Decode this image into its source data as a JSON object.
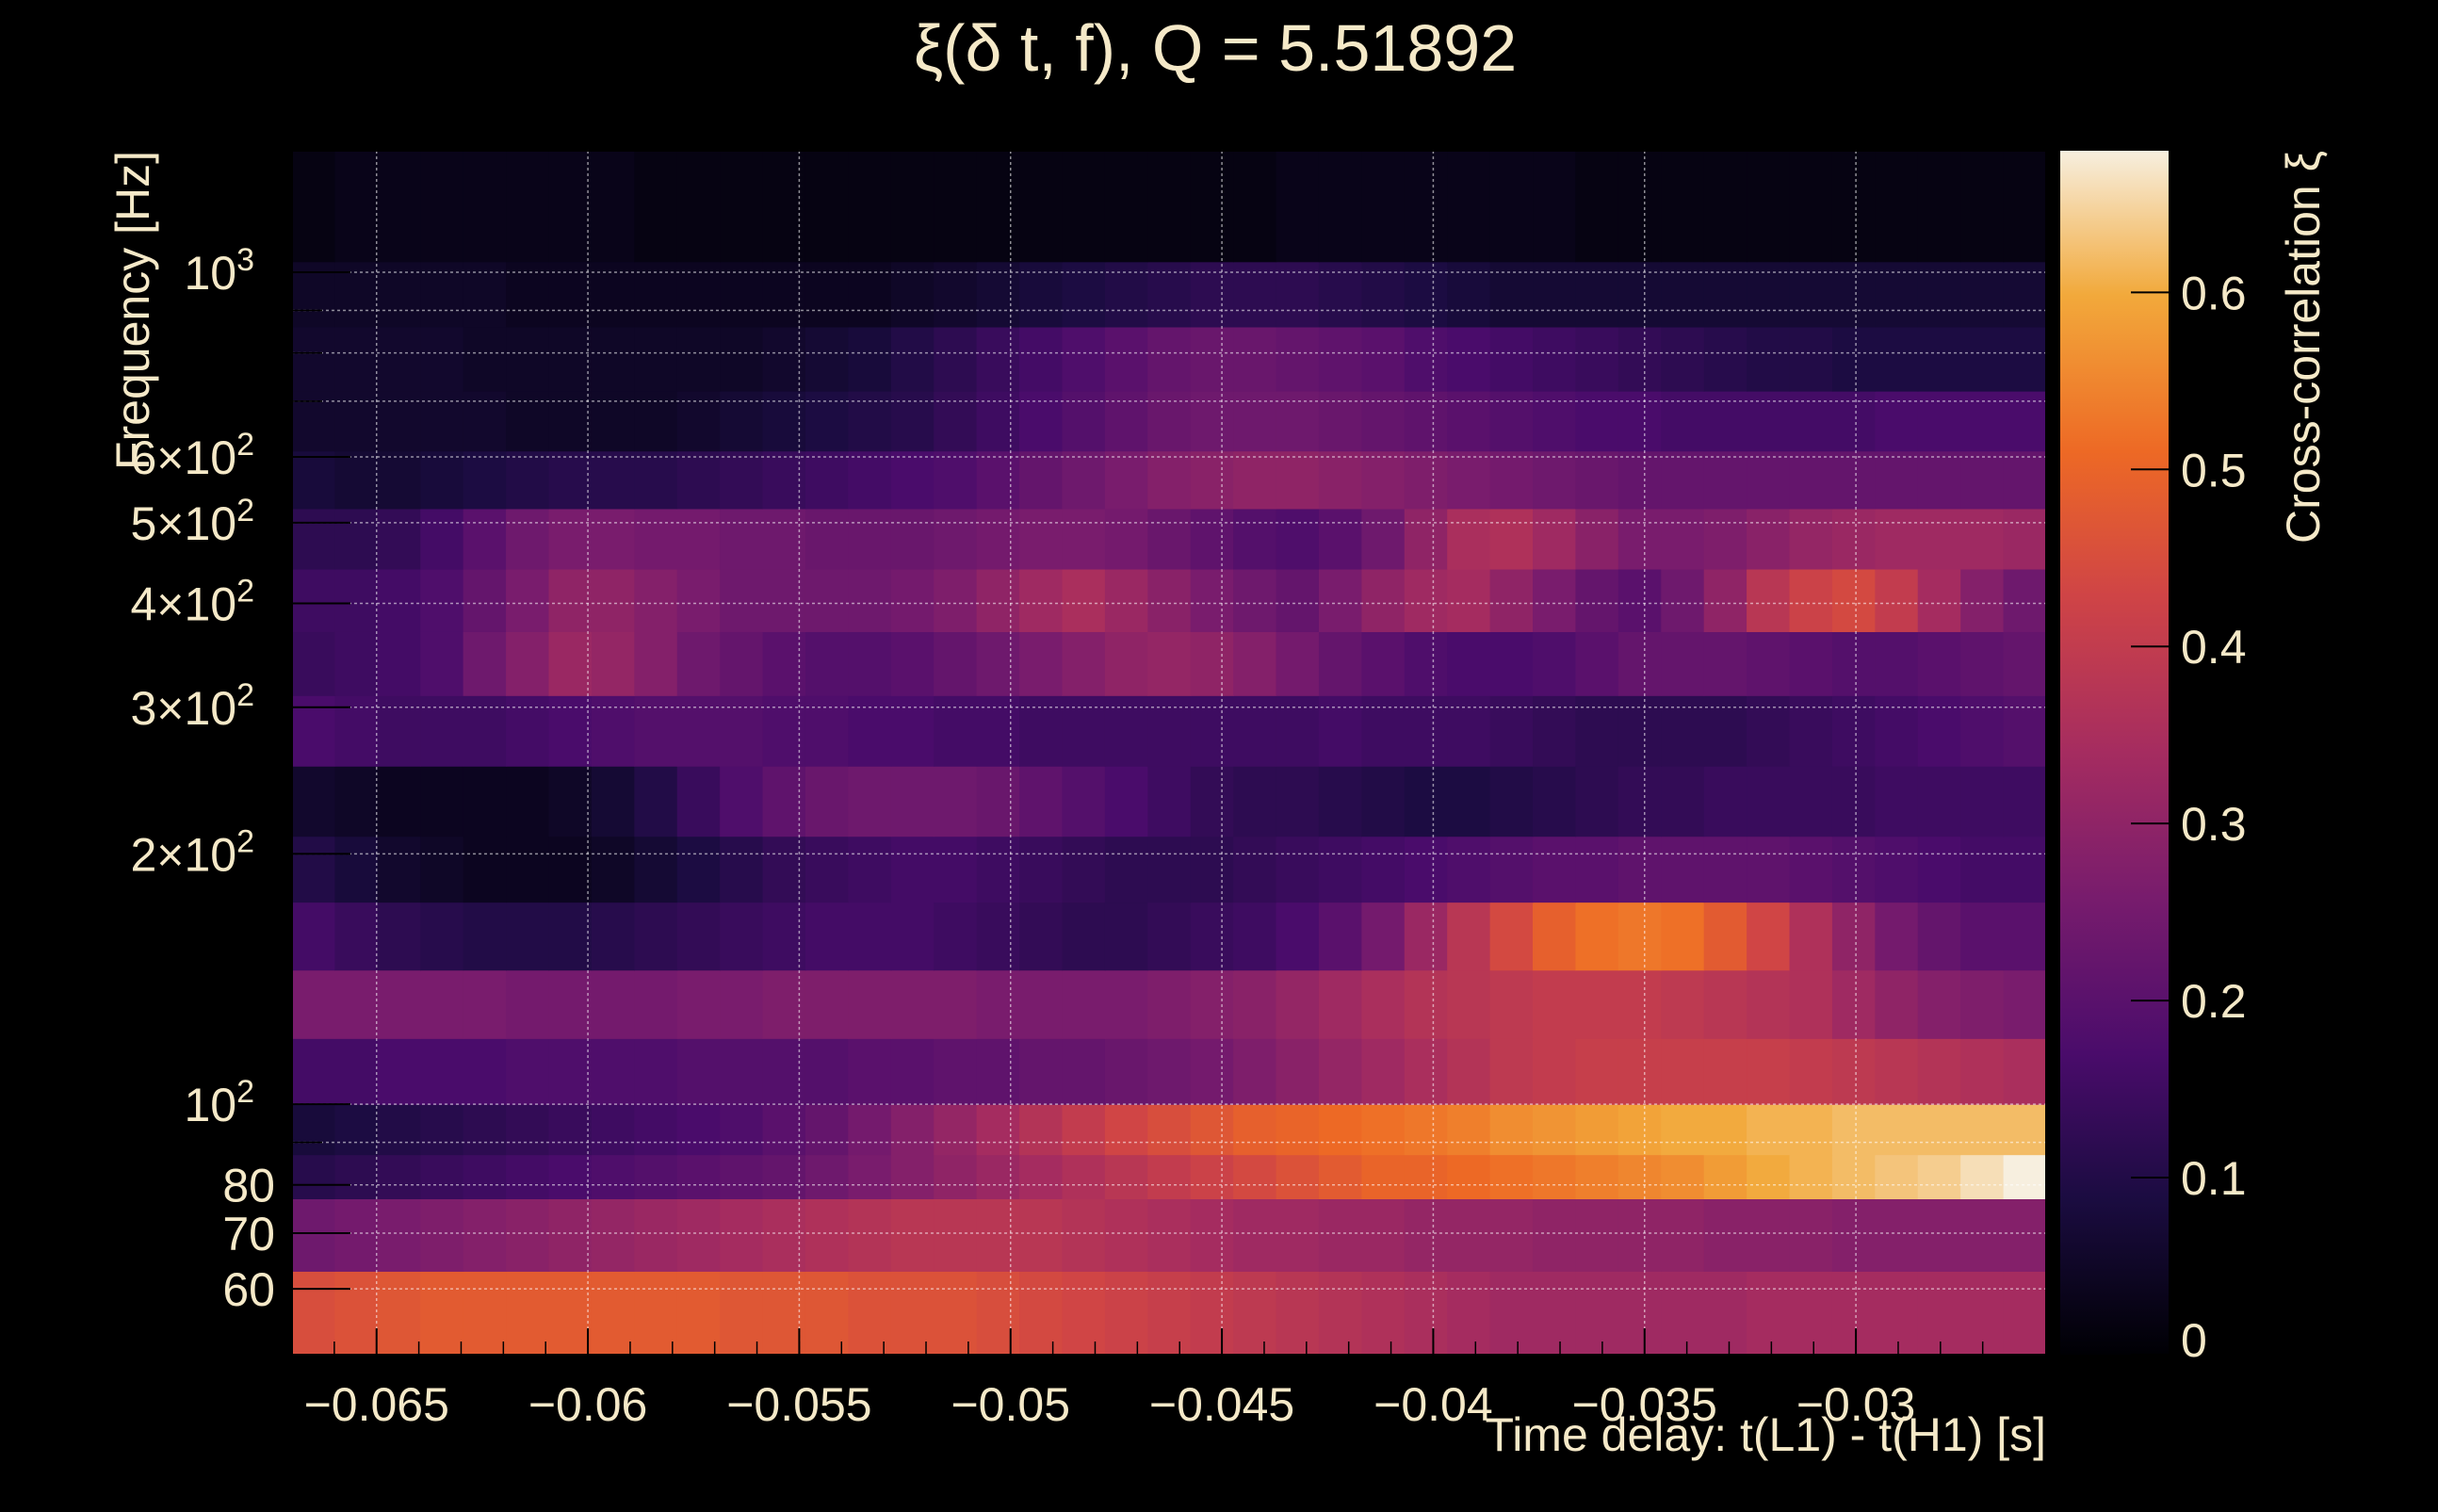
{
  "chart_data": {
    "type": "heatmap",
    "title": "ξ(δ t, f), Q = 5.51892",
    "xlabel": "Time delay: t(L1) - t(H1) [s]",
    "ylabel": "Frequency [Hz]",
    "zlabel": "Cross-correlation ξ",
    "x_range": [
      -0.067,
      -0.0255
    ],
    "y_range": [
      50,
      1400
    ],
    "y_scale": "log",
    "z_range": [
      0,
      0.68
    ],
    "grid": true,
    "colormap": "inferno",
    "x_ticks": [
      {
        "value": -0.065,
        "label": "−0.065"
      },
      {
        "value": -0.06,
        "label": "−0.06"
      },
      {
        "value": -0.055,
        "label": "−0.055"
      },
      {
        "value": -0.05,
        "label": "−0.05"
      },
      {
        "value": -0.045,
        "label": "−0.045"
      },
      {
        "value": -0.04,
        "label": "−0.04"
      },
      {
        "value": -0.035,
        "label": "−0.035"
      },
      {
        "value": -0.03,
        "label": "−0.03"
      }
    ],
    "y_ticks": [
      {
        "value": 60,
        "label": "60"
      },
      {
        "value": 70,
        "label": "70"
      },
      {
        "value": 80,
        "label": "80"
      },
      {
        "value": 100,
        "label": "10",
        "sup": "2"
      },
      {
        "value": 200,
        "label": "2×10",
        "sup": "2"
      },
      {
        "value": 300,
        "label": "3×10",
        "sup": "2"
      },
      {
        "value": 400,
        "label": "4×10",
        "sup": "2"
      },
      {
        "value": 500,
        "label": "5×10",
        "sup": "2"
      },
      {
        "value": 600,
        "label": "6×10",
        "sup": "2"
      },
      {
        "value": 1000,
        "label": "10",
        "sup": "3"
      }
    ],
    "y_minor_ticks": [
      90,
      700,
      800,
      900
    ],
    "z_ticks": [
      {
        "value": 0,
        "label": "0"
      },
      {
        "value": 0.1,
        "label": "0.1"
      },
      {
        "value": 0.2,
        "label": "0.2"
      },
      {
        "value": 0.3,
        "label": "0.3"
      },
      {
        "value": 0.4,
        "label": "0.4"
      },
      {
        "value": 0.5,
        "label": "0.5"
      },
      {
        "value": 0.6,
        "label": "0.6"
      }
    ],
    "rows": [
      {
        "f_low": 50,
        "f_high": 63,
        "values": [
          0.45,
          0.46,
          0.47,
          0.48,
          0.48,
          0.48,
          0.48,
          0.48,
          0.48,
          0.48,
          0.47,
          0.47,
          0.47,
          0.46,
          0.46,
          0.46,
          0.45,
          0.44,
          0.43,
          0.42,
          0.41,
          0.4,
          0.39,
          0.38,
          0.37,
          0.36,
          0.35,
          0.34,
          0.33,
          0.33,
          0.33,
          0.33,
          0.33,
          0.33,
          0.34,
          0.34,
          0.34,
          0.34,
          0.34,
          0.34,
          0.34
        ]
      },
      {
        "f_low": 63,
        "f_high": 77,
        "values": [
          0.24,
          0.25,
          0.26,
          0.27,
          0.28,
          0.29,
          0.3,
          0.31,
          0.32,
          0.33,
          0.34,
          0.35,
          0.36,
          0.37,
          0.38,
          0.38,
          0.38,
          0.38,
          0.37,
          0.36,
          0.35,
          0.34,
          0.33,
          0.33,
          0.32,
          0.32,
          0.31,
          0.31,
          0.31,
          0.3,
          0.3,
          0.3,
          0.3,
          0.29,
          0.29,
          0.29,
          0.28,
          0.28,
          0.28,
          0.28,
          0.28
        ]
      },
      {
        "f_low": 77,
        "f_high": 87,
        "values": [
          0.11,
          0.12,
          0.13,
          0.14,
          0.15,
          0.16,
          0.17,
          0.18,
          0.19,
          0.2,
          0.21,
          0.22,
          0.24,
          0.26,
          0.28,
          0.3,
          0.32,
          0.34,
          0.36,
          0.38,
          0.4,
          0.42,
          0.44,
          0.46,
          0.48,
          0.5,
          0.5,
          0.51,
          0.52,
          0.53,
          0.54,
          0.55,
          0.56,
          0.58,
          0.6,
          0.61,
          0.62,
          0.63,
          0.64,
          0.66,
          0.68
        ]
      },
      {
        "f_low": 87,
        "f_high": 100,
        "values": [
          0.08,
          0.09,
          0.1,
          0.11,
          0.12,
          0.13,
          0.14,
          0.15,
          0.16,
          0.17,
          0.18,
          0.2,
          0.22,
          0.25,
          0.28,
          0.31,
          0.34,
          0.37,
          0.4,
          0.43,
          0.45,
          0.47,
          0.49,
          0.5,
          0.51,
          0.52,
          0.53,
          0.54,
          0.56,
          0.57,
          0.58,
          0.59,
          0.6,
          0.6,
          0.61,
          0.61,
          0.62,
          0.62,
          0.62,
          0.62,
          0.62
        ]
      },
      {
        "f_low": 100,
        "f_high": 120,
        "values": [
          0.16,
          0.16,
          0.17,
          0.17,
          0.17,
          0.18,
          0.18,
          0.18,
          0.18,
          0.19,
          0.19,
          0.19,
          0.19,
          0.2,
          0.2,
          0.21,
          0.21,
          0.22,
          0.22,
          0.23,
          0.24,
          0.25,
          0.27,
          0.29,
          0.31,
          0.33,
          0.35,
          0.37,
          0.39,
          0.4,
          0.41,
          0.41,
          0.41,
          0.41,
          0.41,
          0.4,
          0.39,
          0.38,
          0.37,
          0.36,
          0.35
        ]
      },
      {
        "f_low": 120,
        "f_high": 145,
        "values": [
          0.26,
          0.26,
          0.26,
          0.26,
          0.26,
          0.25,
          0.25,
          0.25,
          0.25,
          0.26,
          0.26,
          0.27,
          0.27,
          0.27,
          0.27,
          0.27,
          0.26,
          0.26,
          0.26,
          0.26,
          0.27,
          0.28,
          0.29,
          0.31,
          0.33,
          0.35,
          0.37,
          0.38,
          0.39,
          0.4,
          0.4,
          0.4,
          0.39,
          0.38,
          0.37,
          0.36,
          0.33,
          0.3,
          0.28,
          0.27,
          0.26
        ]
      },
      {
        "f_low": 145,
        "f_high": 175,
        "values": [
          0.16,
          0.14,
          0.12,
          0.11,
          0.1,
          0.1,
          0.1,
          0.11,
          0.12,
          0.13,
          0.14,
          0.15,
          0.16,
          0.16,
          0.16,
          0.15,
          0.14,
          0.13,
          0.12,
          0.12,
          0.13,
          0.14,
          0.15,
          0.17,
          0.2,
          0.25,
          0.32,
          0.38,
          0.44,
          0.49,
          0.52,
          0.53,
          0.52,
          0.48,
          0.43,
          0.36,
          0.3,
          0.25,
          0.22,
          0.2,
          0.2
        ]
      },
      {
        "f_low": 175,
        "f_high": 210,
        "values": [
          0.1,
          0.08,
          0.06,
          0.05,
          0.04,
          0.04,
          0.04,
          0.05,
          0.07,
          0.09,
          0.11,
          0.13,
          0.14,
          0.15,
          0.16,
          0.16,
          0.15,
          0.14,
          0.13,
          0.12,
          0.12,
          0.12,
          0.13,
          0.14,
          0.15,
          0.16,
          0.17,
          0.18,
          0.19,
          0.2,
          0.2,
          0.21,
          0.21,
          0.21,
          0.21,
          0.2,
          0.19,
          0.18,
          0.17,
          0.16,
          0.16
        ]
      },
      {
        "f_low": 210,
        "f_high": 255,
        "values": [
          0.06,
          0.05,
          0.04,
          0.04,
          0.04,
          0.04,
          0.05,
          0.07,
          0.1,
          0.14,
          0.18,
          0.21,
          0.23,
          0.24,
          0.24,
          0.24,
          0.23,
          0.21,
          0.19,
          0.17,
          0.15,
          0.13,
          0.12,
          0.12,
          0.11,
          0.1,
          0.09,
          0.09,
          0.1,
          0.11,
          0.12,
          0.13,
          0.13,
          0.14,
          0.14,
          0.14,
          0.14,
          0.15,
          0.15,
          0.15,
          0.15
        ]
      },
      {
        "f_low": 255,
        "f_high": 310,
        "values": [
          0.17,
          0.16,
          0.15,
          0.15,
          0.15,
          0.16,
          0.17,
          0.18,
          0.19,
          0.19,
          0.19,
          0.18,
          0.18,
          0.17,
          0.17,
          0.16,
          0.16,
          0.15,
          0.15,
          0.15,
          0.15,
          0.15,
          0.15,
          0.15,
          0.16,
          0.15,
          0.15,
          0.15,
          0.14,
          0.13,
          0.12,
          0.12,
          0.12,
          0.12,
          0.13,
          0.14,
          0.15,
          0.16,
          0.17,
          0.18,
          0.19
        ]
      },
      {
        "f_low": 310,
        "f_high": 370,
        "values": [
          0.14,
          0.15,
          0.16,
          0.18,
          0.24,
          0.28,
          0.32,
          0.31,
          0.28,
          0.24,
          0.22,
          0.2,
          0.19,
          0.19,
          0.2,
          0.22,
          0.24,
          0.26,
          0.28,
          0.3,
          0.31,
          0.3,
          0.28,
          0.25,
          0.22,
          0.2,
          0.18,
          0.17,
          0.17,
          0.18,
          0.2,
          0.22,
          0.22,
          0.22,
          0.21,
          0.2,
          0.19,
          0.19,
          0.2,
          0.21,
          0.22
        ]
      },
      {
        "f_low": 370,
        "f_high": 440,
        "values": [
          0.15,
          0.15,
          0.16,
          0.18,
          0.22,
          0.26,
          0.3,
          0.3,
          0.28,
          0.26,
          0.24,
          0.24,
          0.24,
          0.24,
          0.25,
          0.27,
          0.3,
          0.33,
          0.35,
          0.32,
          0.29,
          0.26,
          0.24,
          0.22,
          0.26,
          0.3,
          0.33,
          0.34,
          0.3,
          0.26,
          0.22,
          0.2,
          0.24,
          0.3,
          0.38,
          0.42,
          0.44,
          0.4,
          0.34,
          0.28,
          0.24
        ]
      },
      {
        "f_low": 440,
        "f_high": 520,
        "values": [
          0.12,
          0.12,
          0.13,
          0.16,
          0.2,
          0.24,
          0.26,
          0.26,
          0.25,
          0.25,
          0.24,
          0.24,
          0.23,
          0.23,
          0.23,
          0.24,
          0.25,
          0.26,
          0.26,
          0.25,
          0.23,
          0.21,
          0.19,
          0.18,
          0.2,
          0.24,
          0.3,
          0.35,
          0.36,
          0.33,
          0.29,
          0.26,
          0.26,
          0.27,
          0.29,
          0.31,
          0.32,
          0.33,
          0.33,
          0.33,
          0.32
        ]
      },
      {
        "f_low": 520,
        "f_high": 610,
        "values": [
          0.08,
          0.07,
          0.07,
          0.08,
          0.09,
          0.1,
          0.11,
          0.11,
          0.11,
          0.12,
          0.13,
          0.14,
          0.15,
          0.16,
          0.17,
          0.18,
          0.2,
          0.22,
          0.24,
          0.26,
          0.28,
          0.29,
          0.3,
          0.3,
          0.29,
          0.28,
          0.27,
          0.26,
          0.25,
          0.24,
          0.23,
          0.22,
          0.22,
          0.22,
          0.22,
          0.22,
          0.22,
          0.22,
          0.22,
          0.22,
          0.22
        ]
      },
      {
        "f_low": 610,
        "f_high": 720,
        "values": [
          0.06,
          0.06,
          0.06,
          0.06,
          0.06,
          0.05,
          0.05,
          0.05,
          0.05,
          0.06,
          0.07,
          0.08,
          0.09,
          0.1,
          0.11,
          0.13,
          0.15,
          0.17,
          0.19,
          0.21,
          0.23,
          0.24,
          0.24,
          0.24,
          0.23,
          0.22,
          0.21,
          0.2,
          0.19,
          0.18,
          0.17,
          0.17,
          0.16,
          0.16,
          0.16,
          0.16,
          0.16,
          0.17,
          0.17,
          0.17,
          0.17
        ]
      },
      {
        "f_low": 720,
        "f_high": 860,
        "values": [
          0.06,
          0.06,
          0.06,
          0.06,
          0.05,
          0.05,
          0.05,
          0.05,
          0.05,
          0.05,
          0.05,
          0.06,
          0.07,
          0.08,
          0.1,
          0.12,
          0.14,
          0.16,
          0.18,
          0.2,
          0.22,
          0.23,
          0.23,
          0.22,
          0.21,
          0.2,
          0.18,
          0.17,
          0.16,
          0.15,
          0.14,
          0.13,
          0.12,
          0.11,
          0.1,
          0.1,
          0.09,
          0.09,
          0.09,
          0.09,
          0.09
        ]
      },
      {
        "f_low": 860,
        "f_high": 1030,
        "values": [
          0.05,
          0.05,
          0.05,
          0.05,
          0.05,
          0.04,
          0.04,
          0.04,
          0.04,
          0.04,
          0.04,
          0.04,
          0.04,
          0.04,
          0.05,
          0.06,
          0.07,
          0.08,
          0.09,
          0.1,
          0.11,
          0.12,
          0.12,
          0.12,
          0.11,
          0.1,
          0.09,
          0.08,
          0.07,
          0.07,
          0.07,
          0.07,
          0.07,
          0.07,
          0.07,
          0.07,
          0.07,
          0.07,
          0.07,
          0.07,
          0.07
        ]
      },
      {
        "f_low": 1030,
        "f_high": 1400,
        "values": [
          0.02,
          0.03,
          0.03,
          0.03,
          0.03,
          0.03,
          0.03,
          0.03,
          0.02,
          0.02,
          0.02,
          0.02,
          0.02,
          0.02,
          0.02,
          0.02,
          0.02,
          0.02,
          0.02,
          0.02,
          0.02,
          0.02,
          0.02,
          0.03,
          0.03,
          0.03,
          0.03,
          0.03,
          0.03,
          0.03,
          0.02,
          0.02,
          0.02,
          0.02,
          0.02,
          0.02,
          0.02,
          0.02,
          0.02,
          0.02,
          0.02
        ]
      }
    ]
  }
}
